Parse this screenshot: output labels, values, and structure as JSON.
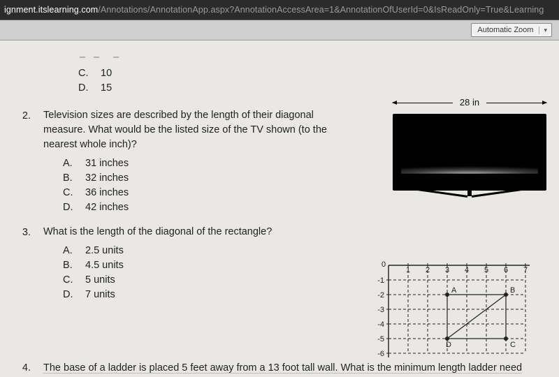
{
  "url": {
    "host": "ignment.itslearning.com",
    "path": "/Annotations/AnnotationApp.aspx?AnnotationAccessArea=1&AnnotationOfUserId=0&IsReadOnly=True&Learning"
  },
  "toolbar": {
    "zoom_label": "Automatic Zoom"
  },
  "colors": {
    "page_bg": "#e9e8e4",
    "text": "#222222",
    "toolbar_bg": "#cfcfcf",
    "addr_bg": "#2b2b2b"
  },
  "typography": {
    "body_pt": 14.5,
    "label_pt": 11
  },
  "prev_question": {
    "options": [
      {
        "letter": "C.",
        "text": "10"
      },
      {
        "letter": "D.",
        "text": "15"
      }
    ]
  },
  "q2": {
    "number": "2.",
    "text": "Television sizes are described by the length of their diagonal measure.  What would be the listed size of the TV shown (to the nearest whole inch)?",
    "options": [
      {
        "letter": "A.",
        "text": "31 inches"
      },
      {
        "letter": "B.",
        "text": "32 inches"
      },
      {
        "letter": "C.",
        "text": "36 inches"
      },
      {
        "letter": "D.",
        "text": "42 inches"
      }
    ],
    "figure": {
      "dimension_label": "28 in",
      "tv_color": "#000000",
      "glare_color": "rgba(200,200,200,0.85)"
    }
  },
  "q3": {
    "number": "3.",
    "text": "What is the length of the diagonal of the rectangle?",
    "options": [
      {
        "letter": "A.",
        "text": "2.5 units"
      },
      {
        "letter": "B.",
        "text": "4.5 units"
      },
      {
        "letter": "C.",
        "text": "5 units"
      },
      {
        "letter": "D.",
        "text": "7 units"
      }
    ],
    "figure": {
      "type": "coordinate-grid",
      "x_ticks": [
        "1",
        "2",
        "3",
        "4",
        "5",
        "6",
        "7"
      ],
      "y_ticks": [
        "-1",
        "-2",
        "-3",
        "-4",
        "-5",
        "-6"
      ],
      "origin_label": "0",
      "xlim": [
        0,
        7
      ],
      "ylim": [
        -6,
        0
      ],
      "grid_style": "dashed",
      "points": {
        "A": {
          "x": 3,
          "y": -2,
          "label": "A"
        },
        "B": {
          "x": 6,
          "y": -2,
          "label": "B"
        },
        "C": {
          "x": 6,
          "y": -5,
          "label": "C"
        },
        "D": {
          "x": 3,
          "y": -5,
          "label": "D"
        }
      },
      "rect_lines": [
        [
          3,
          -2,
          6,
          -2
        ],
        [
          6,
          -2,
          6,
          -5
        ],
        [
          6,
          -5,
          3,
          -5
        ],
        [
          3,
          -5,
          3,
          -2
        ]
      ],
      "diagonal": [
        3,
        -5,
        6,
        -2
      ],
      "line_color": "#222222"
    }
  },
  "q4": {
    "number": "4.",
    "text": "The base of a ladder is placed 5 feet away from a 13 foot tall wall.  What is the minimum length ladder need"
  }
}
